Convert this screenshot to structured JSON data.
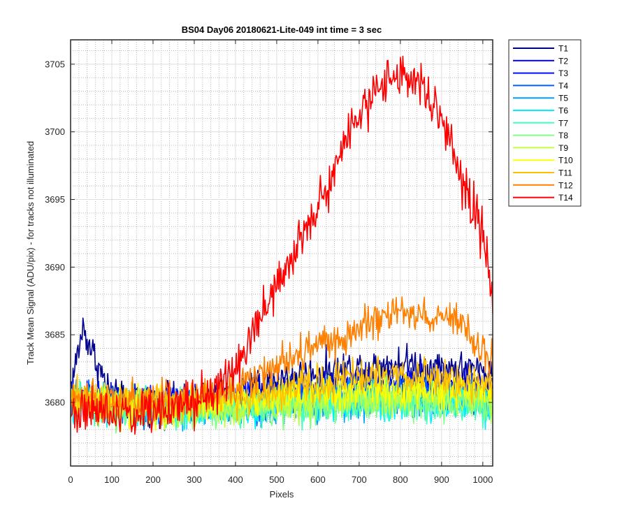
{
  "chart_data": {
    "type": "line",
    "title": "BS04 Day06 20180621-Lite-049 int time = 3 sec",
    "xlabel": "Pixels",
    "ylabel": "Track Mean Signal (ADU/pix) - for tracks not illuminated",
    "xlim": [
      0,
      1024
    ],
    "ylim": [
      3675.3,
      3706.8
    ],
    "xticks": [
      0,
      100,
      200,
      300,
      400,
      500,
      600,
      700,
      800,
      900,
      1000
    ],
    "yticks": [
      3680,
      3685,
      3690,
      3695,
      3700,
      3705
    ],
    "grid": "major solid, minor dotted",
    "legend_position": "outside-right",
    "series": [
      {
        "name": "T1",
        "color": "#00008f",
        "x": [
          0,
          30,
          100,
          200,
          300,
          400,
          500,
          600,
          700,
          800,
          900,
          1000,
          1024
        ],
        "y": [
          3681.0,
          3685.5,
          3680.2,
          3679.9,
          3680.0,
          3680.6,
          3681.6,
          3682.2,
          3682.6,
          3682.9,
          3682.6,
          3682.3,
          3682.0
        ]
      },
      {
        "name": "T2",
        "color": "#0000cf",
        "x": [
          0,
          100,
          200,
          300,
          400,
          500,
          600,
          700,
          800,
          900,
          1000,
          1024
        ],
        "y": [
          3680.5,
          3680.0,
          3679.8,
          3679.9,
          3680.2,
          3680.8,
          3681.2,
          3681.5,
          3681.6,
          3681.4,
          3681.1,
          3681.0
        ]
      },
      {
        "name": "T3",
        "color": "#0010ff",
        "x": [
          0,
          100,
          200,
          300,
          400,
          500,
          600,
          700,
          800,
          900,
          1000,
          1024
        ],
        "y": [
          3680.4,
          3679.9,
          3679.7,
          3679.8,
          3680.0,
          3680.4,
          3680.8,
          3681.1,
          3681.2,
          3681.0,
          3680.8,
          3680.7
        ]
      },
      {
        "name": "T4",
        "color": "#0060ff",
        "x": [
          0,
          100,
          200,
          300,
          400,
          500,
          600,
          700,
          800,
          900,
          1000,
          1024
        ],
        "y": [
          3680.3,
          3679.8,
          3679.6,
          3679.7,
          3679.8,
          3680.1,
          3680.4,
          3680.7,
          3680.8,
          3680.6,
          3680.4,
          3680.3
        ]
      },
      {
        "name": "T5",
        "color": "#00a0ff",
        "x": [
          0,
          100,
          200,
          300,
          400,
          500,
          600,
          700,
          800,
          900,
          1000,
          1024
        ],
        "y": [
          3680.2,
          3679.7,
          3679.6,
          3679.6,
          3679.7,
          3679.9,
          3680.1,
          3680.3,
          3680.4,
          3680.3,
          3680.1,
          3680.0
        ]
      },
      {
        "name": "T6",
        "color": "#00efff",
        "x": [
          0,
          100,
          200,
          300,
          400,
          500,
          600,
          700,
          800,
          900,
          1000,
          1024
        ],
        "y": [
          3680.2,
          3679.7,
          3679.5,
          3679.5,
          3679.6,
          3679.7,
          3679.9,
          3680.1,
          3680.1,
          3680.0,
          3679.9,
          3679.8
        ]
      },
      {
        "name": "T7",
        "color": "#40ffbf",
        "x": [
          0,
          100,
          200,
          300,
          400,
          500,
          600,
          700,
          800,
          900,
          1000,
          1024
        ],
        "y": [
          3680.1,
          3679.6,
          3679.5,
          3679.5,
          3679.5,
          3679.6,
          3679.8,
          3679.9,
          3680.0,
          3679.9,
          3679.8,
          3679.7
        ]
      },
      {
        "name": "T8",
        "color": "#80ff80",
        "x": [
          0,
          100,
          200,
          300,
          400,
          500,
          600,
          700,
          800,
          900,
          1000,
          1024
        ],
        "y": [
          3680.1,
          3679.6,
          3679.4,
          3679.5,
          3679.5,
          3679.6,
          3679.8,
          3679.9,
          3680.0,
          3679.9,
          3679.8,
          3679.7
        ]
      },
      {
        "name": "T9",
        "color": "#bfff40",
        "x": [
          0,
          100,
          200,
          300,
          400,
          500,
          600,
          700,
          800,
          900,
          1000,
          1024
        ],
        "y": [
          3680.2,
          3679.7,
          3679.5,
          3679.6,
          3679.7,
          3679.9,
          3680.2,
          3680.4,
          3680.5,
          3680.4,
          3680.2,
          3680.1
        ]
      },
      {
        "name": "T10",
        "color": "#ffff00",
        "x": [
          0,
          100,
          200,
          300,
          400,
          500,
          600,
          700,
          800,
          900,
          1000,
          1024
        ],
        "y": [
          3680.3,
          3679.8,
          3679.7,
          3679.8,
          3680.0,
          3680.4,
          3680.8,
          3681.0,
          3681.1,
          3681.0,
          3680.8,
          3680.6
        ]
      },
      {
        "name": "T11",
        "color": "#ffbf00",
        "x": [
          0,
          100,
          200,
          300,
          400,
          500,
          600,
          700,
          800,
          900,
          1000,
          1024
        ],
        "y": [
          3680.4,
          3679.9,
          3679.8,
          3680.0,
          3680.4,
          3681.0,
          3681.4,
          3681.8,
          3682.0,
          3681.8,
          3681.5,
          3681.3
        ]
      },
      {
        "name": "T12",
        "color": "#ff8000",
        "x": [
          0,
          100,
          200,
          300,
          400,
          450,
          500,
          600,
          700,
          800,
          900,
          950,
          1000,
          1024
        ],
        "y": [
          3680.3,
          3679.9,
          3679.9,
          3680.2,
          3681.0,
          3682.0,
          3682.8,
          3684.0,
          3685.6,
          3686.6,
          3686.4,
          3685.4,
          3683.8,
          3683.3
        ]
      },
      {
        "name": "T14",
        "color": "#ff0000",
        "x": [
          0,
          50,
          100,
          150,
          200,
          250,
          300,
          350,
          400,
          450,
          500,
          550,
          600,
          650,
          700,
          750,
          800,
          850,
          900,
          950,
          1000,
          1010,
          1024
        ],
        "y": [
          3679.5,
          3679.3,
          3679.2,
          3679.3,
          3679.5,
          3679.8,
          3680.1,
          3680.8,
          3682.5,
          3685.7,
          3688.5,
          3691.3,
          3694.5,
          3698.0,
          3701.5,
          3703.3,
          3704.2,
          3703.3,
          3700.8,
          3696.3,
          3692.6,
          3690.5,
          3687.5
        ]
      }
    ]
  }
}
